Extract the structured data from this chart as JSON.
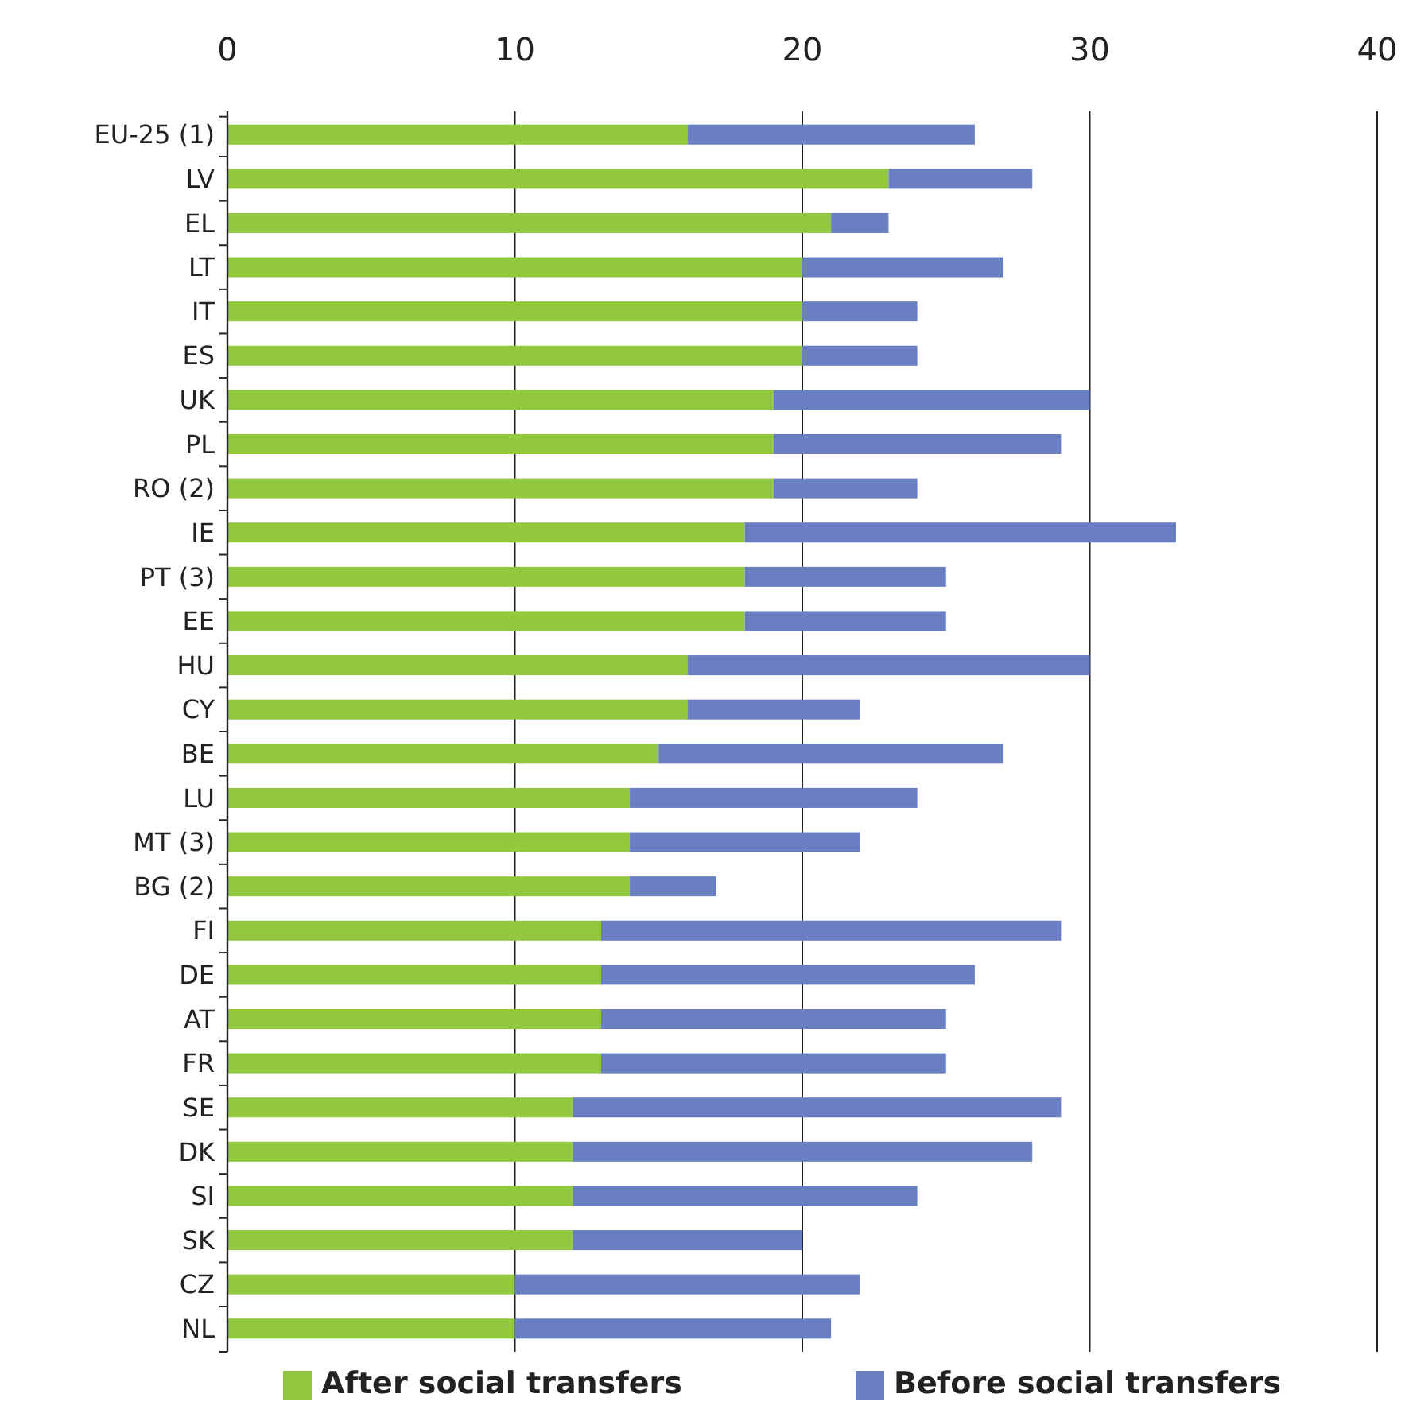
{
  "chart_data": {
    "type": "bar",
    "orientation": "horizontal",
    "stacked": true,
    "categories": [
      "EU-25 (1)",
      "LV",
      "EL",
      "LT",
      "IT",
      "ES",
      "UK",
      "PL",
      "RO (2)",
      "IE",
      "PT (3)",
      "EE",
      "HU",
      "CY",
      "BE",
      "LU",
      "MT (3)",
      "BG (2)",
      "FI",
      "DE",
      "AT",
      "FR",
      "SE",
      "DK",
      "SI",
      "SK",
      "CZ",
      "NL"
    ],
    "series": [
      {
        "name": "After social transfers",
        "color": "#92c83e",
        "values": [
          16,
          23,
          21,
          20,
          20,
          20,
          19,
          19,
          19,
          18,
          18,
          18,
          16,
          16,
          15,
          14,
          14,
          14,
          13,
          13,
          13,
          13,
          12,
          12,
          12,
          12,
          10,
          10
        ]
      },
      {
        "name": "Before social transfers",
        "color": "#6a7fc1",
        "values": [
          10,
          5,
          2,
          7,
          4,
          4,
          11,
          10,
          5,
          15,
          7,
          7,
          14,
          6,
          12,
          10,
          8,
          3,
          16,
          13,
          12,
          12,
          17,
          16,
          12,
          8,
          12,
          11
        ]
      }
    ],
    "xlim": [
      0,
      40
    ],
    "xticks": [
      0,
      10,
      20,
      30,
      40
    ],
    "grid": "x",
    "legend": "bottom"
  }
}
